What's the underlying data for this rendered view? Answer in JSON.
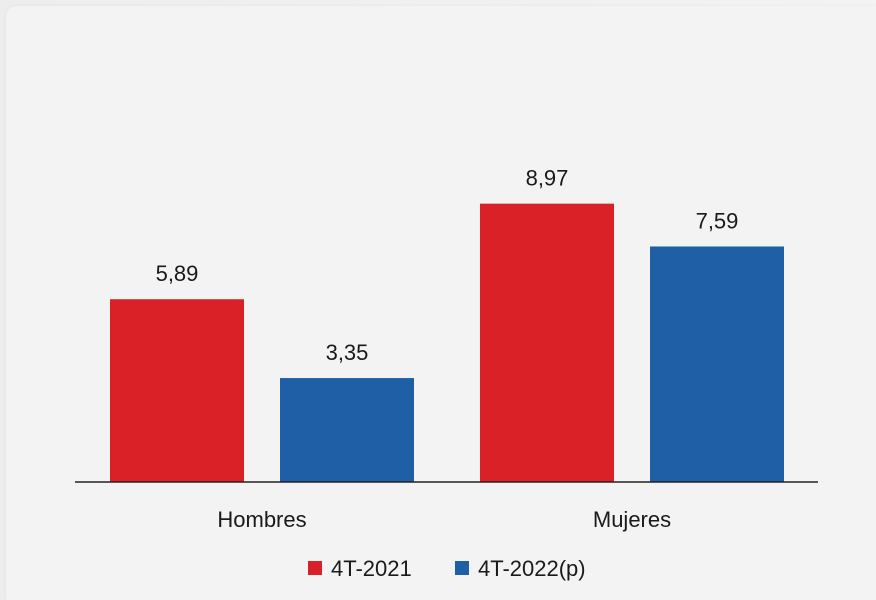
{
  "chart_data": {
    "type": "bar",
    "categories": [
      "Hombres",
      "Mujeres"
    ],
    "series": [
      {
        "name": "4T-2021",
        "values": [
          5.89,
          8.97
        ],
        "labels": [
          "5,89",
          "8,97"
        ],
        "color": "#da2128"
      },
      {
        "name": "4T-2022(p)",
        "values": [
          3.35,
          7.59
        ],
        "labels": [
          "3,35",
          "7,59"
        ],
        "color": "#1f5fa6"
      }
    ],
    "ylim": [
      0,
      9.5
    ],
    "grid": false,
    "legend_position": "bottom",
    "title": "",
    "xlabel": "",
    "ylabel": ""
  }
}
